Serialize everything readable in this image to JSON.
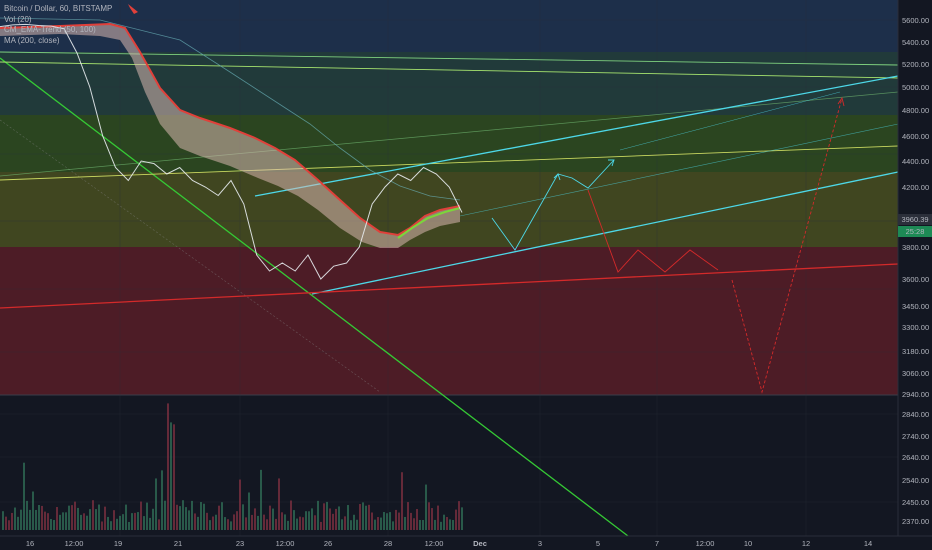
{
  "legend": {
    "symbol": "Bitcoin / Dollar, 60, BITSTAMP",
    "vol": "Vol (20)",
    "ind": "CM_EMA-Trend (50, 100)",
    "ma": "MA (200, close)"
  },
  "price_label": "3960.39",
  "countdown": "25:28",
  "colors": {
    "background": "#131722",
    "zone_blue": "#1f3552",
    "zone_green": "#2f4a22",
    "zone_olive": "#4e5226",
    "zone_red": "#5a1d2a",
    "cloud": "#d9b8b0",
    "ema_red": "#e0403a",
    "cyan": "#4dd8e8",
    "green_line": "#3ad33a",
    "red_line": "#d42a2a",
    "volume": "#8a3a48"
  },
  "chart_data": {
    "type": "line",
    "ylim": [
      2330,
      5750
    ],
    "y_ticks": [
      5600,
      5400,
      5200,
      5000,
      4800,
      4600,
      4400,
      4200,
      4000,
      3800,
      3600,
      3450,
      3300,
      3180,
      3060,
      2940,
      2840,
      2740,
      2640,
      2540,
      2450,
      2370
    ],
    "x_ticks": [
      "16",
      "12:00",
      "19",
      "21",
      "23",
      "12:00",
      "26",
      "28",
      "12:00",
      "Dec",
      "3",
      "5",
      "7",
      "12:00",
      "10",
      "12",
      "14"
    ],
    "series": [
      {
        "values": [
          5540,
          5555,
          5560,
          5550,
          5545,
          5520,
          5300,
          5000,
          4600,
          4350,
          4250,
          4400,
          4380,
          4300,
          4350,
          4250,
          4200,
          4150,
          4250,
          4100,
          3750,
          3650,
          3700,
          3650,
          3750,
          3600,
          3680,
          3700,
          3800,
          4100,
          4200,
          4300,
          4250,
          4350,
          4300,
          4200,
          4050
        ]
      }
    ]
  }
}
